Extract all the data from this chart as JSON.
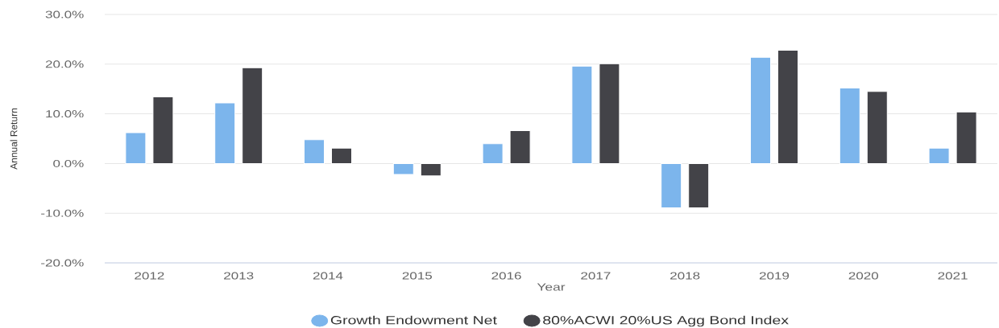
{
  "chart_data": {
    "type": "bar",
    "xlabel": "Year",
    "ylabel": "Annual Return",
    "categories": [
      "2012",
      "2013",
      "2014",
      "2015",
      "2016",
      "2017",
      "2018",
      "2019",
      "2020",
      "2021"
    ],
    "series": [
      {
        "name": "Growth Endowment Net",
        "color": "#7cb5ec",
        "values": [
          6.2,
          12.2,
          4.8,
          -2.2,
          4.0,
          19.6,
          -8.9,
          21.4,
          15.2,
          3.1
        ]
      },
      {
        "name": "80%ACWI 20%US Agg Bond Index",
        "color": "#434348",
        "values": [
          13.4,
          19.3,
          3.1,
          -2.5,
          6.6,
          20.1,
          -8.9,
          22.8,
          14.5,
          10.4
        ]
      }
    ],
    "ylim": [
      -20,
      30
    ],
    "yticks": [
      {
        "value": -20,
        "label": "-20.0%"
      },
      {
        "value": -10,
        "label": "-10.0%"
      },
      {
        "value": 0,
        "label": "0.0%"
      },
      {
        "value": 10,
        "label": "10.0%"
      },
      {
        "value": 20,
        "label": "20.0%"
      },
      {
        "value": 30,
        "label": "30.0%"
      }
    ],
    "grid": "y",
    "legend": "bottom"
  }
}
